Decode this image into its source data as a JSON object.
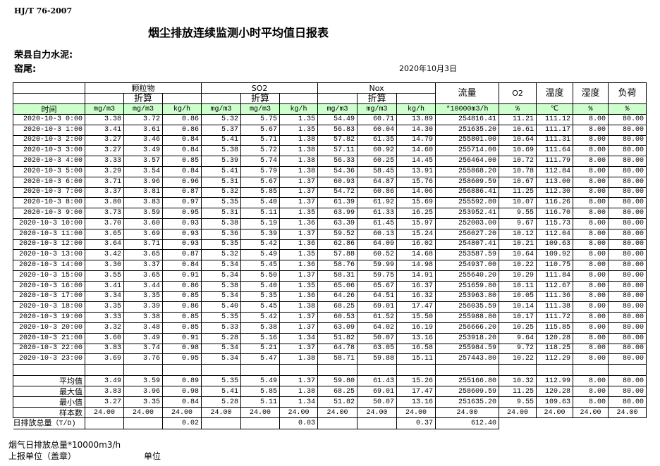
{
  "header": {
    "standard": "HJ/T  76-2007",
    "title": "烟尘排放连续监测小时平均值日报表",
    "company": "荣县自力水泥:",
    "kiln": "窑尾:",
    "date": "2020年10月3日"
  },
  "table": {
    "groups": {
      "particulate": "颗粒物",
      "so2": "SO2",
      "nox": "Nox",
      "converted": "折算"
    },
    "columns": {
      "flow": "流量",
      "o2": "O2",
      "temp": "温度",
      "humidity": "湿度",
      "load": "负荷"
    },
    "time_header": "时间",
    "units": [
      "mg/m3",
      "mg/m3",
      "kg/h",
      "mg/m3",
      "mg/m3",
      "kg/h",
      "mg/m3",
      "mg/m3",
      "kg/h",
      "*10000m3/h",
      "%",
      "℃",
      "%",
      "%"
    ],
    "rows": [
      [
        "2020-10-3 0:00",
        "3.38",
        "3.72",
        "0.86",
        "5.32",
        "5.75",
        "1.35",
        "54.49",
        "60.71",
        "13.89",
        "254816.41",
        "11.21",
        "111.12",
        "8.00",
        "80.00"
      ],
      [
        "2020-10-3 1:00",
        "3.41",
        "3.61",
        "0.86",
        "5.37",
        "5.67",
        "1.35",
        "56.83",
        "60.04",
        "14.30",
        "251635.20",
        "10.61",
        "111.17",
        "8.00",
        "80.00"
      ],
      [
        "2020-10-3 2:00",
        "3.27",
        "3.46",
        "0.84",
        "5.41",
        "5.71",
        "1.38",
        "57.82",
        "61.35",
        "14.79",
        "255801.00",
        "10.64",
        "111.31",
        "8.00",
        "80.00"
      ],
      [
        "2020-10-3 3:00",
        "3.27",
        "3.49",
        "0.84",
        "5.38",
        "5.72",
        "1.38",
        "57.11",
        "60.92",
        "14.60",
        "255714.00",
        "10.69",
        "111.64",
        "8.00",
        "80.00"
      ],
      [
        "2020-10-3 4:00",
        "3.33",
        "3.57",
        "0.85",
        "5.39",
        "5.74",
        "1.38",
        "56.33",
        "60.25",
        "14.45",
        "256464.00",
        "10.72",
        "111.79",
        "8.00",
        "80.00"
      ],
      [
        "2020-10-3 5:00",
        "3.29",
        "3.54",
        "0.84",
        "5.41",
        "5.79",
        "1.38",
        "54.36",
        "58.45",
        "13.91",
        "255868.20",
        "10.78",
        "112.84",
        "8.00",
        "80.00"
      ],
      [
        "2020-10-3 6:00",
        "3.71",
        "3.96",
        "0.96",
        "5.31",
        "5.67",
        "1.37",
        "60.93",
        "64.87",
        "15.76",
        "258609.59",
        "10.67",
        "113.00",
        "8.00",
        "80.00"
      ],
      [
        "2020-10-3 7:00",
        "3.37",
        "3.81",
        "0.87",
        "5.32",
        "5.85",
        "1.37",
        "54.72",
        "60.86",
        "14.06",
        "256886.41",
        "11.25",
        "112.30",
        "8.00",
        "80.00"
      ],
      [
        "2020-10-3 8:00",
        "3.80",
        "3.83",
        "0.97",
        "5.35",
        "5.40",
        "1.37",
        "61.39",
        "61.92",
        "15.69",
        "255592.80",
        "10.07",
        "116.26",
        "8.00",
        "80.00"
      ],
      [
        "2020-10-3 9:00",
        "3.73",
        "3.59",
        "0.95",
        "5.31",
        "5.11",
        "1.35",
        "63.99",
        "61.33",
        "16.25",
        "253952.41",
        "9.55",
        "116.70",
        "8.00",
        "80.00"
      ],
      [
        "2020-10-3 10:00",
        "3.70",
        "3.60",
        "0.93",
        "5.38",
        "5.19",
        "1.36",
        "63.39",
        "61.45",
        "15.97",
        "252003.00",
        "9.67",
        "115.73",
        "8.00",
        "80.00"
      ],
      [
        "2020-10-3 11:00",
        "3.65",
        "3.69",
        "0.93",
        "5.36",
        "5.39",
        "1.37",
        "59.52",
        "60.13",
        "15.24",
        "256027.20",
        "10.12",
        "112.04",
        "8.00",
        "80.00"
      ],
      [
        "2020-10-3 12:00",
        "3.64",
        "3.71",
        "0.93",
        "5.35",
        "5.42",
        "1.36",
        "62.86",
        "64.09",
        "16.02",
        "254807.41",
        "10.21",
        "109.63",
        "8.00",
        "80.00"
      ],
      [
        "2020-10-3 13:00",
        "3.42",
        "3.65",
        "0.87",
        "5.32",
        "5.49",
        "1.35",
        "57.88",
        "60.52",
        "14.68",
        "253587.59",
        "10.64",
        "109.92",
        "8.00",
        "80.00"
      ],
      [
        "2020-10-3 14:00",
        "3.30",
        "3.37",
        "0.84",
        "5.34",
        "5.45",
        "1.36",
        "58.76",
        "59.99",
        "14.98",
        "254937.00",
        "10.22",
        "110.75",
        "8.00",
        "80.00"
      ],
      [
        "2020-10-3 15:00",
        "3.55",
        "3.65",
        "0.91",
        "5.34",
        "5.50",
        "1.37",
        "58.31",
        "59.75",
        "14.91",
        "255640.20",
        "10.29",
        "111.84",
        "8.00",
        "80.00"
      ],
      [
        "2020-10-3 16:00",
        "3.41",
        "3.44",
        "0.86",
        "5.38",
        "5.40",
        "1.35",
        "65.06",
        "65.67",
        "16.37",
        "251659.80",
        "10.11",
        "112.67",
        "8.00",
        "80.00"
      ],
      [
        "2020-10-3 17:00",
        "3.34",
        "3.35",
        "0.85",
        "5.34",
        "5.35",
        "1.36",
        "64.26",
        "64.51",
        "16.32",
        "253963.80",
        "10.05",
        "111.36",
        "8.00",
        "80.00"
      ],
      [
        "2020-10-3 18:00",
        "3.35",
        "3.39",
        "0.86",
        "5.40",
        "5.45",
        "1.38",
        "68.25",
        "69.01",
        "17.47",
        "256035.59",
        "10.14",
        "111.38",
        "8.00",
        "80.00"
      ],
      [
        "2020-10-3 19:00",
        "3.33",
        "3.38",
        "0.85",
        "5.35",
        "5.42",
        "1.37",
        "60.53",
        "61.52",
        "15.50",
        "255988.80",
        "10.17",
        "111.72",
        "8.00",
        "80.00"
      ],
      [
        "2020-10-3 20:00",
        "3.32",
        "3.48",
        "0.85",
        "5.33",
        "5.38",
        "1.37",
        "63.09",
        "64.02",
        "16.19",
        "256666.20",
        "10.25",
        "115.85",
        "8.00",
        "80.00"
      ],
      [
        "2020-10-3 21:00",
        "3.60",
        "3.49",
        "0.91",
        "5.28",
        "5.16",
        "1.34",
        "51.82",
        "50.07",
        "13.16",
        "253918.20",
        "9.64",
        "120.28",
        "8.00",
        "80.00"
      ],
      [
        "2020-10-3 22:00",
        "3.83",
        "3.74",
        "0.98",
        "5.34",
        "5.21",
        "1.37",
        "64.78",
        "63.05",
        "16.58",
        "255984.59",
        "9.72",
        "118.25",
        "8.00",
        "80.00"
      ],
      [
        "2020-10-3 23:00",
        "3.69",
        "3.76",
        "0.95",
        "5.34",
        "5.47",
        "1.38",
        "58.71",
        "59.88",
        "15.11",
        "257443.80",
        "10.22",
        "112.29",
        "8.00",
        "80.00"
      ]
    ],
    "summary": [
      [
        "平均值",
        "3.49",
        "3.59",
        "0.89",
        "5.35",
        "5.49",
        "1.37",
        "59.80",
        "61.43",
        "15.26",
        "255166.80",
        "10.32",
        "112.99",
        "8.00",
        "80.00"
      ],
      [
        "最大值",
        "3.83",
        "3.96",
        "0.98",
        "5.41",
        "5.85",
        "1.38",
        "68.25",
        "69.01",
        "17.47",
        "258609.59",
        "11.25",
        "120.28",
        "8.00",
        "80.00"
      ],
      [
        "最小值",
        "3.27",
        "3.35",
        "0.84",
        "5.28",
        "5.11",
        "1.34",
        "51.82",
        "50.07",
        "13.16",
        "251635.20",
        "9.55",
        "109.63",
        "8.00",
        "80.00"
      ],
      [
        "样本数",
        "24.00",
        "24.00",
        "24.00",
        "24.00",
        "24.00",
        "24.00",
        "24.00",
        "24.00",
        "24.00",
        "24.00",
        "24.00",
        "24.00",
        "24.00",
        "24.00"
      ]
    ],
    "daily_total": {
      "label": "日排放总量",
      "unit": "（T/D)",
      "values": [
        "",
        "",
        "0.02",
        "",
        "",
        "0.03",
        "",
        "",
        "0.37",
        "612.40"
      ]
    },
    "header_bg": "#ccffcc"
  },
  "footer": {
    "flue_gas_total": "烟气日排放总量*10000m3/h",
    "reporting_unit": "上报单位（盖章）",
    "unit": "单位"
  }
}
